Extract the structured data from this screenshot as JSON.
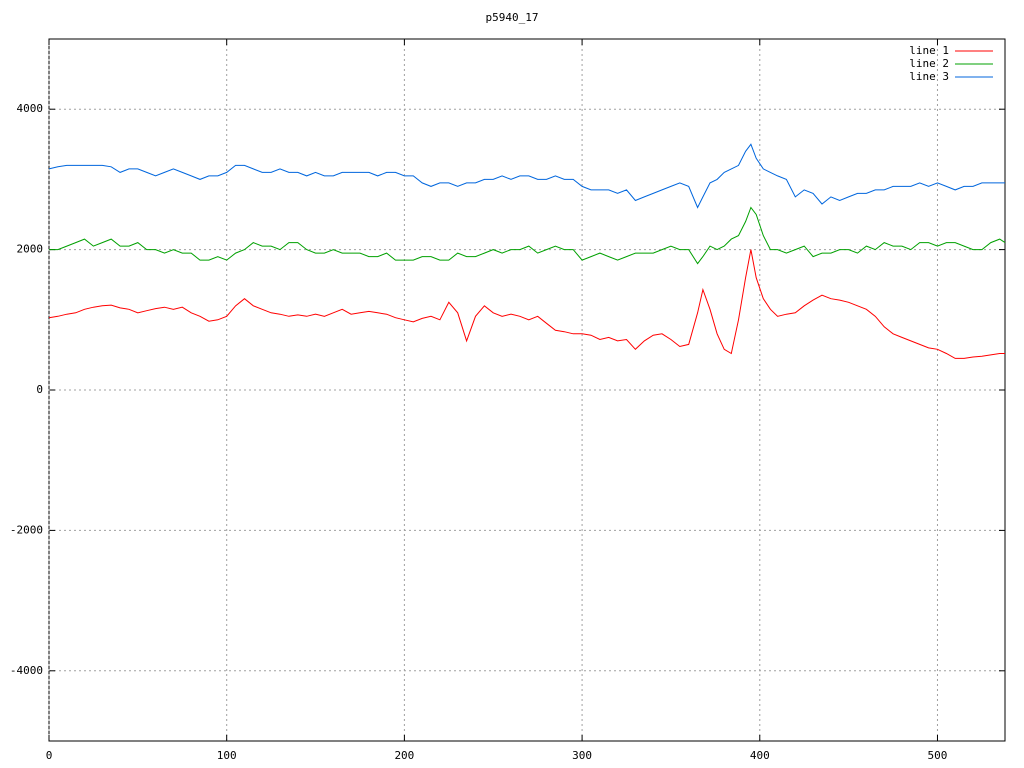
{
  "chart_data": {
    "type": "line",
    "title": "p5940_17",
    "x": [
      0,
      5,
      10,
      15,
      20,
      25,
      30,
      35,
      40,
      45,
      50,
      55,
      60,
      65,
      70,
      75,
      80,
      85,
      90,
      95,
      100,
      105,
      110,
      115,
      120,
      125,
      130,
      135,
      140,
      145,
      150,
      155,
      160,
      165,
      170,
      175,
      180,
      185,
      190,
      195,
      200,
      205,
      210,
      215,
      220,
      225,
      230,
      235,
      240,
      245,
      250,
      255,
      260,
      265,
      270,
      275,
      280,
      285,
      290,
      295,
      300,
      305,
      310,
      315,
      320,
      325,
      330,
      335,
      340,
      345,
      350,
      355,
      360,
      365,
      368,
      372,
      376,
      380,
      384,
      388,
      392,
      395,
      398,
      402,
      406,
      410,
      415,
      420,
      425,
      430,
      435,
      440,
      445,
      450,
      455,
      460,
      465,
      470,
      475,
      480,
      485,
      490,
      495,
      500,
      505,
      510,
      515,
      520,
      525,
      530,
      535,
      538
    ],
    "series": [
      {
        "name": "line 1",
        "color": "#ff0000",
        "values": [
          1030,
          1050,
          1080,
          1100,
          1150,
          1180,
          1200,
          1210,
          1170,
          1150,
          1100,
          1130,
          1160,
          1180,
          1150,
          1180,
          1100,
          1050,
          980,
          1000,
          1050,
          1200,
          1300,
          1200,
          1150,
          1100,
          1080,
          1050,
          1070,
          1050,
          1080,
          1050,
          1100,
          1150,
          1080,
          1100,
          1120,
          1100,
          1080,
          1030,
          1000,
          970,
          1020,
          1050,
          1000,
          1250,
          1100,
          700,
          1050,
          1200,
          1100,
          1050,
          1080,
          1050,
          1000,
          1050,
          950,
          850,
          830,
          800,
          800,
          780,
          720,
          750,
          700,
          720,
          580,
          700,
          780,
          800,
          720,
          620,
          650,
          1100,
          1430,
          1150,
          800,
          580,
          520,
          1000,
          1600,
          2000,
          1600,
          1300,
          1150,
          1050,
          1080,
          1100,
          1200,
          1280,
          1350,
          1300,
          1280,
          1250,
          1200,
          1150,
          1050,
          900,
          800,
          750,
          700,
          650,
          600,
          580,
          520,
          450,
          450,
          470,
          480,
          500,
          520,
          520
        ]
      },
      {
        "name": "line 2",
        "color": "#00a000",
        "values": [
          2000,
          2000,
          2050,
          2100,
          2150,
          2050,
          2100,
          2150,
          2050,
          2050,
          2100,
          2000,
          2000,
          1950,
          2000,
          1950,
          1950,
          1850,
          1850,
          1900,
          1850,
          1950,
          2000,
          2100,
          2050,
          2050,
          2000,
          2100,
          2100,
          2000,
          1950,
          1950,
          2000,
          1950,
          1950,
          1950,
          1900,
          1900,
          1950,
          1850,
          1850,
          1850,
          1900,
          1900,
          1850,
          1850,
          1950,
          1900,
          1900,
          1950,
          2000,
          1950,
          2000,
          2000,
          2050,
          1950,
          2000,
          2050,
          2000,
          2000,
          1850,
          1900,
          1950,
          1900,
          1850,
          1900,
          1950,
          1950,
          1950,
          2000,
          2050,
          2000,
          2000,
          1800,
          1900,
          2050,
          2000,
          2050,
          2150,
          2200,
          2400,
          2600,
          2500,
          2200,
          2000,
          2000,
          1950,
          2000,
          2050,
          1900,
          1950,
          1950,
          2000,
          2000,
          1950,
          2050,
          2000,
          2100,
          2050,
          2050,
          2000,
          2100,
          2100,
          2050,
          2100,
          2100,
          2050,
          2000,
          2000,
          2100,
          2150,
          2100
        ]
      },
      {
        "name": "line 3",
        "color": "#0066dd",
        "values": [
          3150,
          3180,
          3200,
          3200,
          3200,
          3200,
          3200,
          3180,
          3100,
          3150,
          3150,
          3100,
          3050,
          3100,
          3150,
          3100,
          3050,
          3000,
          3050,
          3050,
          3100,
          3200,
          3200,
          3150,
          3100,
          3100,
          3150,
          3100,
          3100,
          3050,
          3100,
          3050,
          3050,
          3100,
          3100,
          3100,
          3100,
          3050,
          3100,
          3100,
          3050,
          3050,
          2950,
          2900,
          2950,
          2950,
          2900,
          2950,
          2950,
          3000,
          3000,
          3050,
          3000,
          3050,
          3050,
          3000,
          3000,
          3050,
          3000,
          3000,
          2900,
          2850,
          2850,
          2850,
          2800,
          2850,
          2700,
          2750,
          2800,
          2850,
          2900,
          2950,
          2900,
          2600,
          2750,
          2950,
          3000,
          3100,
          3150,
          3200,
          3400,
          3500,
          3300,
          3150,
          3100,
          3050,
          3000,
          2750,
          2850,
          2800,
          2650,
          2750,
          2700,
          2750,
          2800,
          2800,
          2850,
          2850,
          2900,
          2900,
          2900,
          2950,
          2900,
          2950,
          2900,
          2850,
          2900,
          2900,
          2950,
          2950,
          2950,
          2950
        ]
      }
    ],
    "xlim": [
      0,
      538
    ],
    "xticks": [
      0,
      100,
      200,
      300,
      400,
      500
    ],
    "ylim": [
      -5000,
      5000
    ],
    "yticks": [
      -4000,
      -2000,
      0,
      2000,
      4000
    ],
    "grid": true,
    "legend": "top-right"
  }
}
